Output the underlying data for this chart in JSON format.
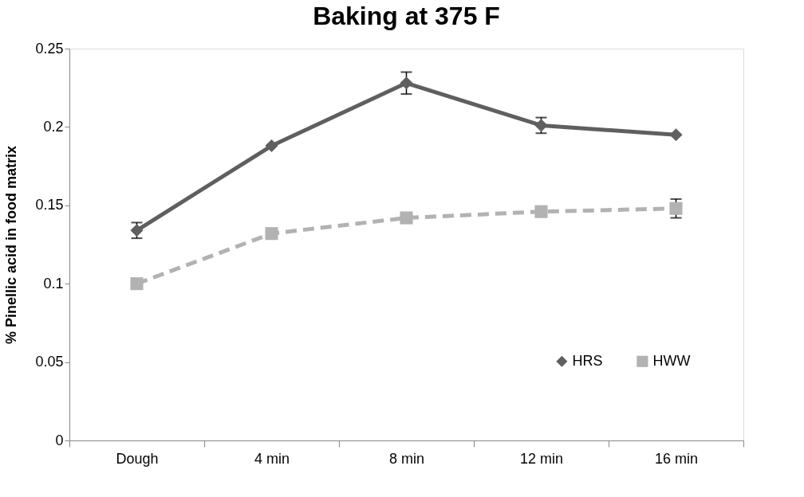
{
  "chart_data": {
    "type": "line",
    "title": "Baking at 375 F",
    "ylabel": "% Pinellic acid in food matrix",
    "categories": [
      "Dough",
      "4 min",
      "8 min",
      "12 min",
      "16 min"
    ],
    "series": [
      {
        "name": "HRS",
        "color": "#5f5f5f",
        "marker": "diamond",
        "line_style": "solid",
        "values": [
          0.134,
          0.188,
          0.228,
          0.201,
          0.195
        ],
        "errors": [
          0.005,
          null,
          0.007,
          0.005,
          null
        ]
      },
      {
        "name": "HWW",
        "color": "#b2b2b2",
        "marker": "square",
        "line_style": "dashed",
        "values": [
          0.1,
          0.132,
          0.142,
          0.146,
          0.148
        ],
        "errors": [
          null,
          null,
          null,
          null,
          0.006
        ]
      }
    ],
    "ylim": [
      0,
      0.25
    ],
    "yticks": [
      0,
      0.05,
      0.1,
      0.15,
      0.2,
      0.25
    ],
    "grid": false,
    "legend": "bottom right"
  }
}
